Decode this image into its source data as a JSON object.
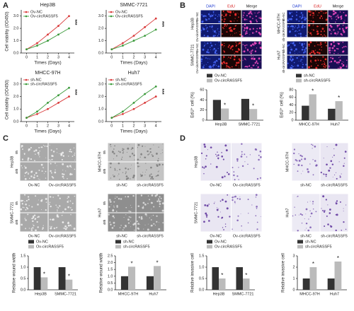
{
  "panel_labels": [
    "A",
    "B",
    "C",
    "D"
  ],
  "image_panels": [
    {
      "group": "Hep3B",
      "rows": [
        "Ov-NC",
        "Ov-circRASSF5"
      ],
      "col_headers": [
        "DAPI",
        "EdU",
        "Merge"
      ],
      "header_colors": [
        "#1f3bd0",
        "#d62020",
        "#111111"
      ],
      "tile_colors": [
        "#101a70",
        "#1a0606",
        "#1a0f55"
      ],
      "dot_colors": [
        "#4a6bff",
        "#ff3030",
        "#ff50c8"
      ]
    },
    {
      "group": "SMMC-7721",
      "rows": [
        "Ov-NC",
        "Ov-circRASSF5"
      ],
      "tile_colors": [
        "#101a70",
        "#1a0606",
        "#1a0f55"
      ],
      "dot_colors": [
        "#4a6bff",
        "#ff3030",
        "#ff50c8"
      ]
    },
    {
      "group": "MHCC-97H",
      "rows": [
        "sh-NC",
        "sh-circRASSF5"
      ],
      "col_headers": [
        "DAPI",
        "EdU",
        "Merge"
      ],
      "header_colors": [
        "#1f3bd0",
        "#d62020",
        "#111111"
      ],
      "tile_colors": [
        "#101a70",
        "#1a0606",
        "#1a0f55"
      ],
      "dot_colors": [
        "#4a6bff",
        "#ff3030",
        "#ff50c8"
      ]
    },
    {
      "group": "Huh7",
      "rows": [
        "sh-NC",
        "sh-circRASSF5"
      ],
      "tile_colors": [
        "#101a70",
        "#1a0606",
        "#1a0f55"
      ],
      "dot_colors": [
        "#4a6bff",
        "#ff3030",
        "#ff50c8"
      ]
    },
    {
      "group": "Hep3B",
      "rows": [
        "0h",
        "48h"
      ],
      "col_footers": [
        "Ov-NC",
        "Ov-circRASSF5"
      ],
      "tile_colors": [
        "#a9a9a9",
        "#a9a9a9"
      ],
      "dot_colors": [
        "#f2f2f2",
        "#f2f2f2"
      ]
    },
    {
      "group": "SMMC-7721",
      "rows": [
        "0h",
        "48h"
      ],
      "col_footers": [
        "Ov-NC",
        "Ov-circRASSF5"
      ],
      "tile_colors": [
        "#a9a9a9",
        "#a9a9a9"
      ],
      "dot_colors": [
        "#f2f2f2",
        "#f2f2f2"
      ]
    },
    {
      "group": "MHCC-97H",
      "rows": [
        "0h",
        "48h"
      ],
      "col_footers": [
        "sh-NC",
        "sh-circRASSF5"
      ],
      "tile_colors": [
        "#c4c4c4",
        "#c4c4c4"
      ],
      "dot_colors": [
        "#7a7a7a",
        "#7a7a7a"
      ]
    },
    {
      "group": "Huh7",
      "rows": [
        "0h",
        "48h"
      ],
      "col_footers": [
        "sh-NC",
        "sh-circRASSF5"
      ],
      "tile_colors": [
        "#8e8e8e",
        "#8e8e8e"
      ],
      "dot_colors": [
        "#e0e0e0",
        "#e0e0e0"
      ]
    },
    {
      "group": "Hep3B",
      "rows": [],
      "col_footers": [
        "Ov-NC",
        "Ov-circRASSF5"
      ],
      "tile_colors": [
        "#e9e6f2",
        "#eceaf4"
      ],
      "dot_colors": [
        "#5b2e9a",
        "#7a58b0"
      ]
    },
    {
      "group": "SMMC-7721",
      "rows": [],
      "col_footers": [
        "Ov-NC",
        "Ov-circRASSF5"
      ],
      "tile_colors": [
        "#e9e6f2",
        "#eceaf4"
      ],
      "dot_colors": [
        "#5b2e9a",
        "#7a58b0"
      ]
    },
    {
      "group": "MHCC-97H",
      "rows": [],
      "col_footers": [
        "sh-NC",
        "sh-circRASSF5"
      ],
      "tile_colors": [
        "#eceaf4",
        "#e9e6f2"
      ],
      "dot_colors": [
        "#7a58b0",
        "#5b2e9a"
      ]
    },
    {
      "group": "Huh7",
      "rows": [],
      "col_footers": [
        "sh-NC",
        "sh-circRASSF5"
      ],
      "tile_colors": [
        "#eceaf4",
        "#e9e6f2"
      ],
      "dot_colors": [
        "#7a58b0",
        "#5b2e9a"
      ]
    }
  ],
  "chart_data": [
    {
      "type": "line",
      "title": "Hep3B",
      "xlabel": "Times (Days)",
      "ylabel": "Cell viability (OD450)",
      "x": [
        0,
        1,
        2,
        3,
        4
      ],
      "xlim": [
        -0.5,
        4.5
      ],
      "xticks": [
        0,
        1,
        2,
        3,
        4
      ],
      "ylim": [
        0,
        3.5
      ],
      "yticks": [
        {
          "value": 0,
          "label": "0.0"
        },
        {
          "value": 1,
          "label": "1.0"
        },
        {
          "value": 2,
          "label": "2.0"
        },
        {
          "value": 3,
          "label": "3.0"
        }
      ],
      "annotation": "***",
      "series": [
        {
          "name": "Ov-NC",
          "color": "#d93a3a",
          "values": [
            0.3,
            0.8,
            1.5,
            2.2,
            3.0
          ]
        },
        {
          "name": "Ov-circRASSF5",
          "color": "#3a9a3a",
          "values": [
            0.3,
            0.6,
            1.0,
            1.5,
            2.0
          ]
        }
      ]
    },
    {
      "type": "line",
      "title": "SMMC-7721",
      "xlabel": "Times (Days)",
      "x": [
        0,
        1,
        2,
        3,
        4
      ],
      "xlim": [
        -0.5,
        4.5
      ],
      "xticks": [
        0,
        1,
        2,
        3,
        4
      ],
      "ylim": [
        0,
        3.5
      ],
      "yticks": [
        {
          "value": 0,
          "label": "0.0"
        },
        {
          "value": 1,
          "label": "1.0"
        },
        {
          "value": 2,
          "label": "2.0"
        },
        {
          "value": 3,
          "label": "3.0"
        }
      ],
      "annotation": "***",
      "series": [
        {
          "name": "Ov-NC",
          "color": "#d93a3a",
          "values": [
            0.3,
            0.8,
            1.4,
            2.1,
            2.8
          ]
        },
        {
          "name": "Ov-circRASSF5",
          "color": "#3a9a3a",
          "values": [
            0.3,
            0.6,
            1.0,
            1.4,
            1.9
          ]
        }
      ]
    },
    {
      "type": "line",
      "title": "MHCC-97H",
      "xlabel": "Times (Days)",
      "ylabel": "Cell viability (OD450)",
      "x": [
        0,
        1,
        2,
        3,
        4
      ],
      "xlim": [
        -0.5,
        4.5
      ],
      "xticks": [
        0,
        1,
        2,
        3,
        4
      ],
      "ylim": [
        0,
        3.5
      ],
      "yticks": [
        {
          "value": 0,
          "label": "0.0"
        },
        {
          "value": 1,
          "label": "1.0"
        },
        {
          "value": 2,
          "label": "2.0"
        },
        {
          "value": 3,
          "label": "3.0"
        }
      ],
      "annotation": "***",
      "series": [
        {
          "name": "sh-NC",
          "color": "#d93a3a",
          "values": [
            0.3,
            0.6,
            1.0,
            1.5,
            2.0
          ]
        },
        {
          "name": "sh-circRASSF5",
          "color": "#3a9a3a",
          "values": [
            0.3,
            0.8,
            1.5,
            2.1,
            2.7
          ]
        }
      ]
    },
    {
      "type": "line",
      "title": "Huh7",
      "xlabel": "Times (Days)",
      "x": [
        0,
        1,
        2,
        3,
        4
      ],
      "xlim": [
        -0.5,
        4.5
      ],
      "xticks": [
        0,
        1,
        2,
        3,
        4
      ],
      "ylim": [
        0,
        3.5
      ],
      "yticks": [
        {
          "value": 0,
          "label": "0.0"
        },
        {
          "value": 1,
          "label": "1.0"
        },
        {
          "value": 2,
          "label": "2.0"
        },
        {
          "value": 3,
          "label": "3.0"
        }
      ],
      "annotation": "***",
      "series": [
        {
          "name": "sh-NC",
          "color": "#d93a3a",
          "values": [
            0.3,
            0.6,
            1.0,
            1.5,
            2.0
          ]
        },
        {
          "name": "sh-circRASSF5",
          "color": "#3a9a3a",
          "values": [
            0.3,
            0.8,
            1.5,
            2.2,
            2.8
          ]
        }
      ]
    },
    {
      "type": "bar",
      "ylabel": "EdU⁺ cell (%)",
      "categories": [
        "Hep3B",
        "SMMC-7721"
      ],
      "ylim": [
        0,
        60
      ],
      "yticks": [
        0,
        20,
        40,
        60
      ],
      "annotations": [
        "*",
        "*"
      ],
      "series": [
        {
          "name": "Ov-NC",
          "color": "#333333",
          "values": [
            40,
            42
          ]
        },
        {
          "name": "Ov-circRASSF5",
          "color": "#bbbbbb",
          "values": [
            23,
            22
          ]
        }
      ]
    },
    {
      "type": "bar",
      "ylabel": "EdU⁺ cell (%)",
      "categories": [
        "MHCC-97H",
        "Huh7"
      ],
      "ylim": [
        0,
        80
      ],
      "yticks": [
        0,
        20,
        40,
        60,
        80
      ],
      "annotations": [
        "*",
        "*"
      ],
      "series": [
        {
          "name": "sh-NC",
          "color": "#333333",
          "values": [
            38,
            30
          ]
        },
        {
          "name": "sh-circRASSF5",
          "color": "#bbbbbb",
          "values": [
            68,
            50
          ]
        }
      ]
    },
    {
      "type": "bar",
      "ylabel": "Relative wound width",
      "categories": [
        "Hep3B",
        "SMMC-7721"
      ],
      "ylim": [
        0,
        1.5
      ],
      "yticks": [
        {
          "value": 0,
          "label": "0.0"
        },
        0.5,
        {
          "value": 1,
          "label": "1.0"
        },
        1.5
      ],
      "annotations": [
        "*",
        "*"
      ],
      "series": [
        {
          "name": "Ov-NC",
          "color": "#333333",
          "values": [
            1.0,
            1.0
          ]
        },
        {
          "name": "Ov-circRASSF5",
          "color": "#bbbbbb",
          "values": [
            0.55,
            0.45
          ]
        }
      ]
    },
    {
      "type": "bar",
      "ylabel": "Relative wound width",
      "categories": [
        "MHCC-97H",
        "Huh7"
      ],
      "ylim": [
        0,
        2.5
      ],
      "yticks": [
        {
          "value": 0,
          "label": "0.0"
        },
        0.5,
        {
          "value": 1,
          "label": "1.0"
        },
        1.5,
        {
          "value": 2,
          "label": "2.0"
        },
        2.5
      ],
      "annotations": [
        "*",
        "*"
      ],
      "series": [
        {
          "name": "sh-NC",
          "color": "#333333",
          "values": [
            1.0,
            1.0
          ]
        },
        {
          "name": "sh-circRASSF5",
          "color": "#bbbbbb",
          "values": [
            1.7,
            1.75
          ]
        }
      ]
    },
    {
      "type": "bar",
      "ylabel": "Relative invasive cell",
      "categories": [
        "Hep3B",
        "SMMC-7721"
      ],
      "ylim": [
        0,
        1.5
      ],
      "yticks": [
        {
          "value": 0,
          "label": "0.0"
        },
        0.5,
        {
          "value": 1,
          "label": "1.0"
        },
        1.5
      ],
      "annotations": [
        "*",
        "*"
      ],
      "series": [
        {
          "name": "Ov-NC",
          "color": "#333333",
          "values": [
            1.0,
            1.0
          ]
        },
        {
          "name": "Ov-circRASSF5",
          "color": "#bbbbbb",
          "values": [
            0.5,
            0.5
          ]
        }
      ]
    },
    {
      "type": "bar",
      "ylabel": "Relative invasive cell",
      "categories": [
        "MHCC-97H",
        "Huh7"
      ],
      "ylim": [
        0,
        3
      ],
      "yticks": [
        0,
        1,
        2,
        3
      ],
      "annotations": [
        "*",
        "*"
      ],
      "series": [
        {
          "name": "sh-NC",
          "color": "#333333",
          "values": [
            1.0,
            1.0
          ]
        },
        {
          "name": "sh-circRASSF5",
          "color": "#bbbbbb",
          "values": [
            2.0,
            2.5
          ]
        }
      ]
    }
  ]
}
